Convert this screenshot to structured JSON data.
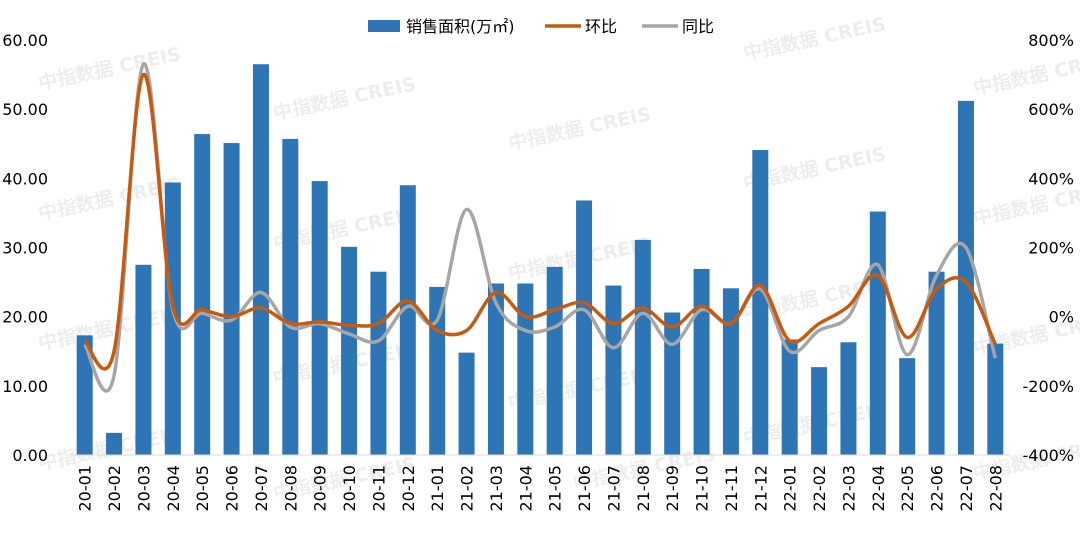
{
  "chart_data": {
    "type": "bar",
    "watermark": "中指数据 CREIS",
    "categories": [
      "20-01",
      "20-02",
      "20-03",
      "20-04",
      "20-05",
      "20-06",
      "20-07",
      "20-08",
      "20-09",
      "20-10",
      "20-11",
      "20-12",
      "21-01",
      "21-02",
      "21-03",
      "21-04",
      "21-05",
      "21-06",
      "21-07",
      "21-08",
      "21-09",
      "21-10",
      "21-11",
      "21-12",
      "22-01",
      "22-02",
      "22-03",
      "22-04",
      "22-05",
      "22-06",
      "22-07",
      "22-08"
    ],
    "left_axis": {
      "ylim": [
        0,
        60
      ],
      "ticks": [
        "0.00",
        "10.00",
        "20.00",
        "30.00",
        "40.00",
        "50.00",
        "60.00"
      ]
    },
    "right_axis": {
      "ylim": [
        -400,
        800
      ],
      "unit": "%",
      "ticks": [
        "-400%",
        "-200%",
        "0%",
        "200%",
        "400%",
        "600%",
        "800%"
      ]
    },
    "series": [
      {
        "name": "销售面积(万㎡)",
        "type": "bar",
        "axis": "left",
        "color": "#2e75b6",
        "values": [
          17.3,
          3.2,
          27.5,
          39.4,
          46.4,
          45.1,
          56.5,
          45.7,
          39.6,
          30.1,
          26.5,
          39.0,
          24.3,
          14.8,
          24.8,
          24.8,
          27.2,
          36.8,
          24.5,
          31.1,
          20.6,
          26.9,
          24.1,
          44.1,
          16.7,
          12.7,
          16.3,
          35.2,
          14.0,
          26.5,
          51.2,
          16.1
        ]
      },
      {
        "name": "环比",
        "type": "line",
        "axis": "right",
        "color": "#c55a11",
        "values": [
          -70,
          -100,
          700,
          30,
          20,
          0,
          25,
          -20,
          -15,
          -25,
          -20,
          45,
          -40,
          -40,
          70,
          0,
          20,
          40,
          -20,
          25,
          -30,
          30,
          -20,
          90,
          -70,
          -20,
          30,
          120,
          -60,
          80,
          100,
          -80
        ]
      },
      {
        "name": "同比",
        "type": "line",
        "axis": "right",
        "color": "#a6a6a6",
        "values": [
          -80,
          -170,
          730,
          20,
          10,
          -10,
          70,
          -30,
          -20,
          -50,
          -70,
          30,
          -10,
          310,
          40,
          -40,
          -30,
          20,
          -90,
          10,
          -80,
          20,
          -20,
          80,
          -100,
          -40,
          0,
          150,
          -110,
          120,
          200,
          -120
        ]
      }
    ]
  }
}
